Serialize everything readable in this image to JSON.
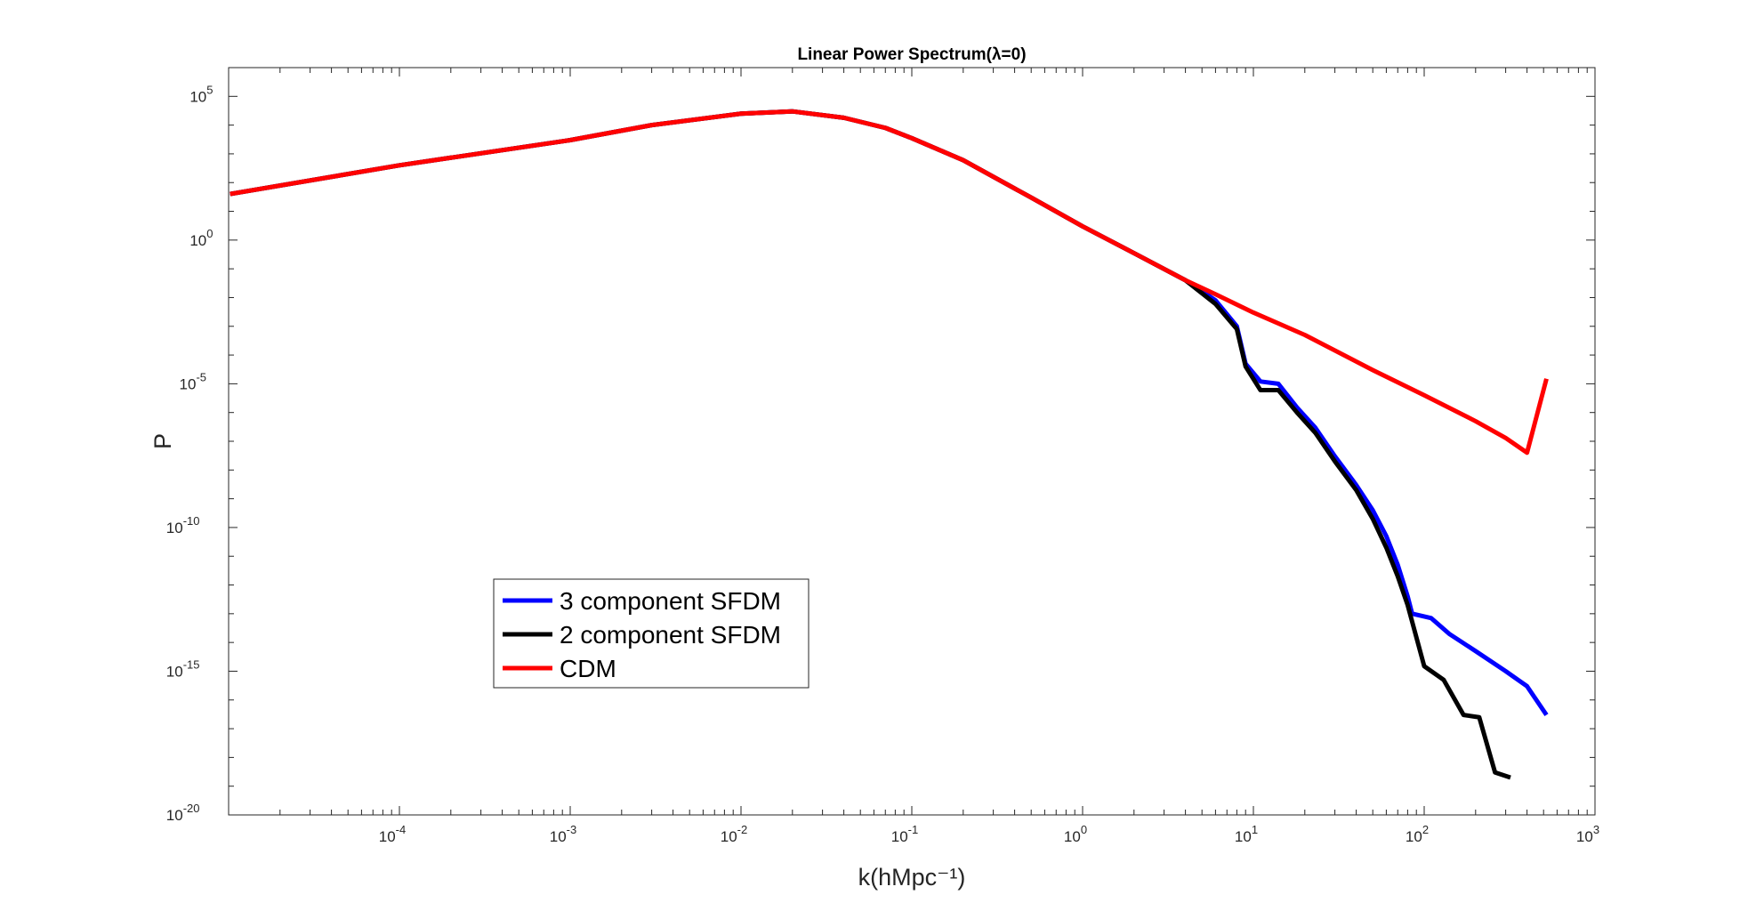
{
  "chart_data": {
    "type": "line",
    "title": "Linear Power Spectrum(λ=0)",
    "xlabel": "k(hMpc⁻¹)",
    "ylabel": "P",
    "xscale": "log",
    "yscale": "log",
    "xlim": [
      1e-05,
      1000
    ],
    "ylim": [
      1e-20,
      1000000.0
    ],
    "x_ticks": [
      0.0001,
      0.001,
      0.01,
      0.1,
      1,
      10,
      100,
      1000
    ],
    "x_tick_labels": [
      {
        "base": "10",
        "exp": "-4"
      },
      {
        "base": "10",
        "exp": "-3"
      },
      {
        "base": "10",
        "exp": "-2"
      },
      {
        "base": "10",
        "exp": "-1"
      },
      {
        "base": "10",
        "exp": "0"
      },
      {
        "base": "10",
        "exp": "1"
      },
      {
        "base": "10",
        "exp": "2"
      },
      {
        "base": "10",
        "exp": "3"
      }
    ],
    "y_ticks": [
      1e-20,
      1e-15,
      1e-10,
      1e-05,
      1,
      100000
    ],
    "y_tick_labels": [
      {
        "base": "10",
        "exp": "-20"
      },
      {
        "base": "10",
        "exp": "-15"
      },
      {
        "base": "10",
        "exp": "-10"
      },
      {
        "base": "10",
        "exp": "-5"
      },
      {
        "base": "10",
        "exp": "0"
      },
      {
        "base": "10",
        "exp": "5"
      }
    ],
    "grid": false,
    "legend_position": "lower-left",
    "series": [
      {
        "name": "3 component SFDM",
        "color": "#0000ff",
        "x": [
          1.02e-05,
          0.0001,
          0.001,
          0.003,
          0.01,
          0.02,
          0.04,
          0.07,
          0.1,
          0.2,
          0.5,
          1,
          2,
          4,
          6,
          8,
          9,
          11,
          14,
          18,
          23,
          30,
          40,
          50,
          60,
          70,
          80,
          85,
          100,
          110,
          140,
          200,
          300,
          400,
          520
        ],
        "y": [
          40,
          400,
          3000,
          10000,
          25000,
          30000,
          18000,
          8000,
          3500,
          600,
          30,
          3,
          0.35,
          0.04,
          0.008,
          0.001,
          5e-05,
          1.2e-05,
          1e-05,
          1.5e-06,
          3e-07,
          3e-08,
          3e-09,
          4e-10,
          5e-11,
          5e-12,
          4e-13,
          1e-13,
          8e-14,
          7e-14,
          2e-14,
          5e-15,
          1e-15,
          3e-16,
          3e-17
        ]
      },
      {
        "name": "2 component SFDM",
        "color": "#000000",
        "x": [
          1.02e-05,
          0.0001,
          0.001,
          0.003,
          0.01,
          0.02,
          0.04,
          0.07,
          0.1,
          0.2,
          0.5,
          1,
          2,
          4,
          6,
          8,
          9,
          11,
          14,
          18,
          23,
          30,
          40,
          50,
          60,
          70,
          80,
          100,
          130,
          170,
          210,
          260,
          320
        ],
        "y": [
          40,
          400,
          3000,
          10000,
          25000,
          30000,
          18000,
          8000,
          3500,
          600,
          30,
          3,
          0.35,
          0.04,
          0.006,
          0.0008,
          4e-05,
          6e-06,
          6e-06,
          1e-06,
          2e-07,
          2e-08,
          2e-09,
          2e-10,
          2e-11,
          2e-12,
          2e-13,
          1.5e-15,
          5e-16,
          3e-17,
          2.5e-17,
          3e-19,
          2e-19
        ]
      },
      {
        "name": "CDM",
        "color": "#ff0000",
        "x": [
          1.02e-05,
          0.0001,
          0.001,
          0.003,
          0.01,
          0.02,
          0.04,
          0.07,
          0.1,
          0.2,
          0.5,
          1,
          2,
          4,
          6,
          10,
          20,
          50,
          100,
          200,
          300,
          400,
          520
        ],
        "y": [
          40,
          400,
          3000,
          10000,
          25000,
          30000,
          18000,
          8000,
          3500,
          600,
          30,
          3,
          0.35,
          0.04,
          0.013,
          0.003,
          0.0005,
          3e-05,
          4e-06,
          5e-07,
          1.3e-07,
          4e-08,
          1.5e-05
        ]
      }
    ]
  }
}
